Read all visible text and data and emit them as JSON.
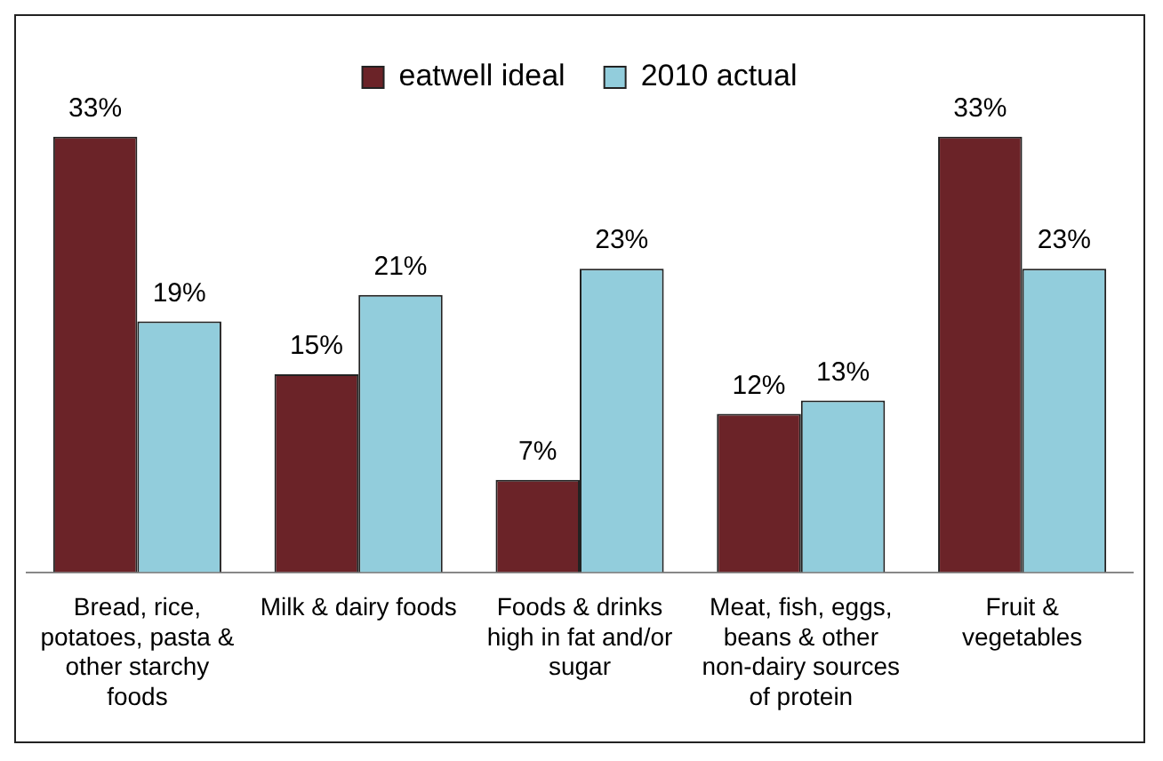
{
  "chart_data": {
    "type": "bar",
    "categories": [
      "Bread, rice, potatoes, pasta & other starchy foods",
      "Milk & dairy foods",
      "Foods & drinks high in fat and/or sugar",
      "Meat, fish, eggs, beans & other non-dairy sources of protein",
      "Fruit & vegetables"
    ],
    "series": [
      {
        "name": "eatwell ideal",
        "color": "#6b2328",
        "values": [
          33,
          15,
          7,
          12,
          33
        ],
        "value_labels": [
          "33%",
          "15%",
          "7%",
          "12%",
          "33%"
        ]
      },
      {
        "name": "2010 actual",
        "color": "#92cddc",
        "values": [
          19,
          21,
          23,
          13,
          23
        ],
        "value_labels": [
          "19%",
          "21%",
          "23%",
          "13%",
          "23%"
        ]
      }
    ],
    "legend": "top",
    "grid": false
  }
}
